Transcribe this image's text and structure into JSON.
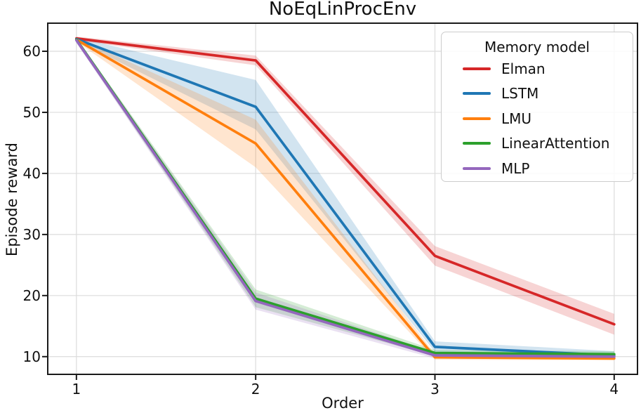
{
  "chart_data": {
    "type": "line",
    "title": "NoEqLinProcEnv",
    "xlabel": "Order",
    "ylabel": "Episode reward",
    "x": [
      1,
      2,
      3,
      4
    ],
    "xticks": [
      "1",
      "2",
      "3",
      "4"
    ],
    "yticks": [
      10,
      20,
      30,
      40,
      50,
      60
    ],
    "xlim": [
      0.84,
      4.13
    ],
    "ylim": [
      7.1,
      64.6
    ],
    "grid": true,
    "band_opacity": 0.2,
    "legend": {
      "title": "Memory model",
      "position": "upper right"
    },
    "series": [
      {
        "name": "Elman",
        "color": "#d62728",
        "values": [
          62.1,
          58.5,
          26.5,
          15.3
        ],
        "lower": [
          61.8,
          57.7,
          24.9,
          13.6
        ],
        "upper": [
          62.4,
          59.3,
          28.1,
          17.0
        ]
      },
      {
        "name": "LSTM",
        "color": "#1f77b4",
        "values": [
          62.0,
          50.9,
          11.6,
          10.2
        ],
        "lower": [
          61.7,
          47.2,
          10.8,
          9.7
        ],
        "upper": [
          62.3,
          55.3,
          12.5,
          10.9
        ]
      },
      {
        "name": "LMU",
        "color": "#ff7f0e",
        "values": [
          61.9,
          44.9,
          9.9,
          9.7
        ],
        "lower": [
          61.6,
          41.0,
          9.5,
          9.4
        ],
        "upper": [
          62.2,
          48.8,
          10.4,
          10.1
        ]
      },
      {
        "name": "LinearAttention",
        "color": "#2ca02c",
        "values": [
          61.9,
          19.5,
          10.6,
          10.4
        ],
        "lower": [
          61.5,
          18.1,
          10.1,
          10.0
        ],
        "upper": [
          62.2,
          21.0,
          11.1,
          10.9
        ]
      },
      {
        "name": "MLP",
        "color": "#9467bd",
        "values": [
          61.8,
          19.1,
          10.2,
          10.0
        ],
        "lower": [
          61.4,
          17.7,
          9.7,
          9.6
        ],
        "upper": [
          62.2,
          20.5,
          10.7,
          10.5
        ]
      }
    ],
    "style": {
      "grid_color": "#dcdcdc",
      "spine_color": "#1a1a1a",
      "line_width": 3.7
    }
  }
}
